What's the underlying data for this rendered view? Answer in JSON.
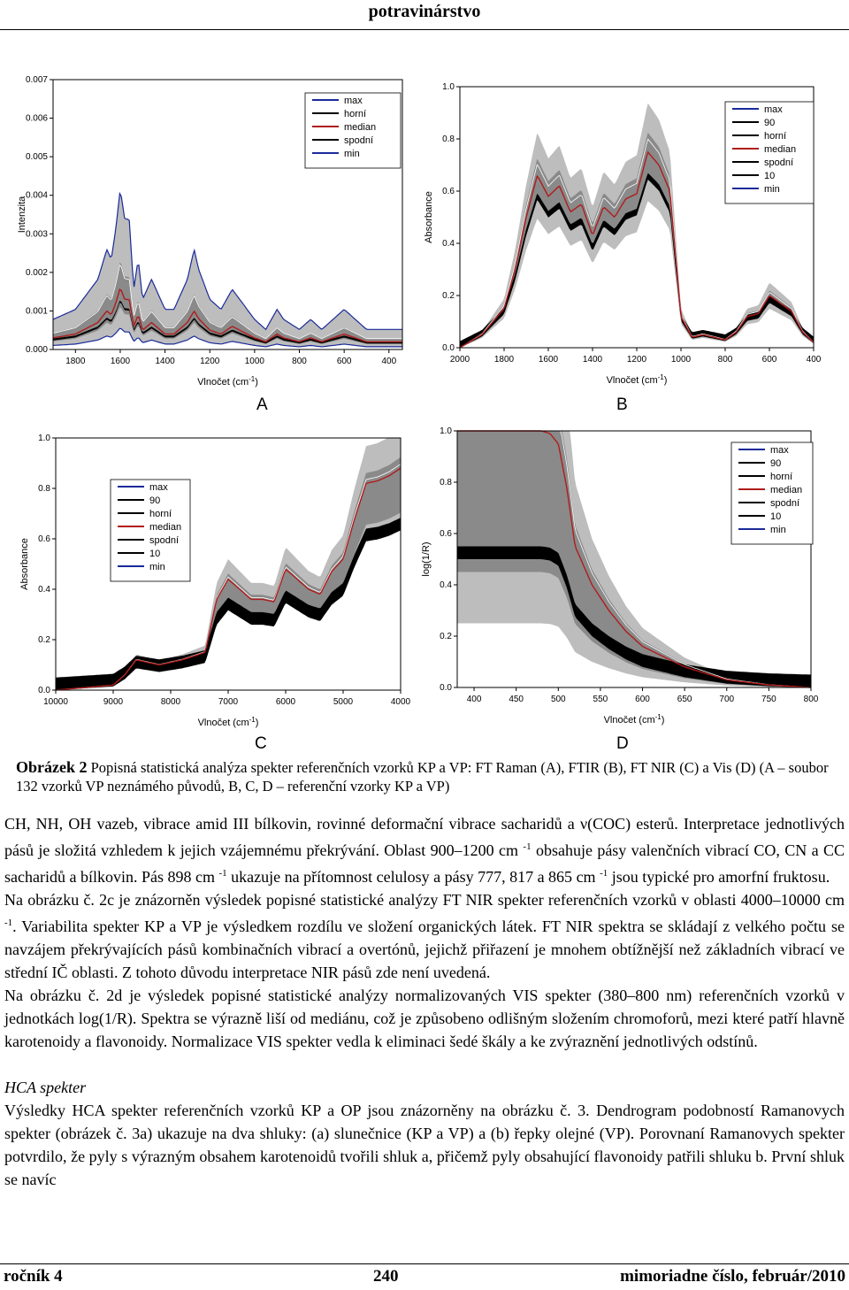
{
  "header": {
    "journal": "potravinárstvo"
  },
  "figure": {
    "panels": [
      {
        "letter": "A"
      },
      {
        "letter": "B"
      },
      {
        "letter": "C"
      },
      {
        "letter": "D"
      }
    ],
    "caption": {
      "label": "Obrázek 2",
      "text": "Popisná statistická analýza spekter referenčních vzorků KP a VP: FT Raman (A), FTIR (B), FT NIR (C) a Vis (D) (A – soubor 132 vzorků VP neznámého původů, B, C, D – referenční vzorky KP a VP)"
    }
  },
  "chart_data": [
    {
      "panel": "A",
      "type": "line",
      "ylabel": "Intenzita",
      "xlabel": "Vlnočet (cm-1)",
      "xticks": [
        "1800",
        "1600",
        "1400",
        "1200",
        "1000",
        "800",
        "600",
        "400"
      ],
      "yticks": [
        "0.000",
        "0.001",
        "0.002",
        "0.003",
        "0.004",
        "0.005",
        "0.006",
        "0.007"
      ],
      "xlim": [
        1900,
        340
      ],
      "ylim": [
        0,
        0.007
      ],
      "legend": [
        "max",
        "horní",
        "median",
        "spodní",
        "min"
      ],
      "legend_colors": [
        "#1a2a9a",
        "#000000",
        "#b01c1c",
        "#000000",
        "#1a2a9a"
      ],
      "series": [
        {
          "name": "median",
          "x": [
            1900,
            1800,
            1700,
            1660,
            1640,
            1620,
            1600,
            1580,
            1560,
            1540,
            1520,
            1500,
            1460,
            1440,
            1400,
            1360,
            1300,
            1270,
            1250,
            1200,
            1150,
            1100,
            1000,
            950,
            900,
            870,
            800,
            750,
            700,
            650,
            600,
            500,
            400,
            340
          ],
          "y": [
            0.0003,
            0.0004,
            0.0007,
            0.001,
            0.0009,
            0.0012,
            0.0016,
            0.0013,
            0.0013,
            0.0006,
            0.0009,
            0.0005,
            0.0007,
            0.0006,
            0.0004,
            0.0004,
            0.0007,
            0.001,
            0.0008,
            0.0005,
            0.0004,
            0.0006,
            0.0003,
            0.0002,
            0.0004,
            0.0003,
            0.0002,
            0.0003,
            0.0002,
            0.0003,
            0.0004,
            0.0002,
            0.0002,
            0.0002
          ]
        }
      ]
    },
    {
      "panel": "B",
      "type": "line",
      "ylabel": "Absorbance",
      "xlabel": "Vlnočet (cm-1)",
      "xticks": [
        "2000",
        "1800",
        "1600",
        "1400",
        "1200",
        "1000",
        "800",
        "600",
        "400"
      ],
      "yticks": [
        "0.0",
        "0.2",
        "0.4",
        "0.6",
        "0.8",
        "1.0"
      ],
      "xlim": [
        2000,
        400
      ],
      "ylim": [
        0,
        1.0
      ],
      "legend": [
        "max",
        "90",
        "horní",
        "median",
        "spodní",
        "10",
        "min"
      ],
      "series": [
        {
          "name": "median",
          "x": [
            2000,
            1900,
            1800,
            1750,
            1700,
            1650,
            1600,
            1550,
            1500,
            1450,
            1400,
            1350,
            1300,
            1250,
            1200,
            1150,
            1100,
            1050,
            1000,
            950,
            900,
            850,
            800,
            750,
            700,
            650,
            600,
            550,
            500,
            450,
            400
          ],
          "y": [
            0.0,
            0.05,
            0.15,
            0.3,
            0.5,
            0.66,
            0.58,
            0.62,
            0.52,
            0.55,
            0.43,
            0.54,
            0.5,
            0.57,
            0.59,
            0.75,
            0.7,
            0.6,
            0.12,
            0.04,
            0.05,
            0.04,
            0.03,
            0.06,
            0.12,
            0.13,
            0.2,
            0.17,
            0.14,
            0.06,
            0.02
          ]
        }
      ]
    },
    {
      "panel": "C",
      "type": "line",
      "ylabel": "Absorbance",
      "xlabel": "Vlnočet (cm-1)",
      "xticks": [
        "10000",
        "9000",
        "8000",
        "7000",
        "6000",
        "5000",
        "4000"
      ],
      "yticks": [
        "0.0",
        "0.2",
        "0.4",
        "0.6",
        "0.8",
        "1.0"
      ],
      "xlim": [
        10000,
        4000
      ],
      "ylim": [
        0,
        1.0
      ],
      "legend": [
        "max",
        "90",
        "horní",
        "median",
        "spodní",
        "10",
        "min"
      ],
      "series": [
        {
          "name": "median",
          "x": [
            10000,
            9500,
            9000,
            8800,
            8600,
            8400,
            8200,
            8000,
            7800,
            7400,
            7200,
            7000,
            6800,
            6600,
            6400,
            6200,
            6000,
            5800,
            5600,
            5400,
            5200,
            5000,
            4800,
            4600,
            4400,
            4200,
            4000
          ],
          "y": [
            0.0,
            0.01,
            0.02,
            0.06,
            0.12,
            0.11,
            0.1,
            0.11,
            0.12,
            0.15,
            0.36,
            0.44,
            0.4,
            0.36,
            0.36,
            0.35,
            0.48,
            0.44,
            0.4,
            0.38,
            0.47,
            0.52,
            0.68,
            0.82,
            0.83,
            0.85,
            0.88
          ]
        }
      ]
    },
    {
      "panel": "D",
      "type": "line",
      "ylabel": "log(1/R)",
      "xlabel": "Vlnočet (cm-1)",
      "xticks": [
        "400",
        "450",
        "500",
        "550",
        "600",
        "650",
        "700",
        "750",
        "800"
      ],
      "yticks": [
        "0.0",
        "0.2",
        "0.4",
        "0.6",
        "0.8",
        "1.0"
      ],
      "xlim": [
        380,
        800
      ],
      "ylim": [
        0,
        1.0
      ],
      "legend": [
        "max",
        "90",
        "horní",
        "median",
        "spodní",
        "10",
        "min"
      ],
      "series": [
        {
          "name": "median",
          "x": [
            380,
            400,
            450,
            480,
            490,
            500,
            510,
            520,
            540,
            560,
            580,
            600,
            650,
            700,
            750,
            800
          ],
          "y": [
            1.0,
            1.0,
            1.0,
            1.0,
            0.99,
            0.95,
            0.78,
            0.55,
            0.4,
            0.3,
            0.22,
            0.16,
            0.08,
            0.03,
            0.01,
            0.0
          ]
        }
      ]
    }
  ],
  "body": {
    "p1": "CH, NH, OH vazeb, vibrace amid III bílkovin, rovinné deformační vibrace sacharidů a ν(COC) esterů. Interpretace jednotlivých pásů je složitá vzhledem k jejich vzájemnému překrývání. Oblast 900–1200 cm-1 obsahuje pásy valenčních vibrací CO, CN a CC sacharidů a bílkovin. Pás 898 cm-1 ukazuje na přítomnost celulosy a pásy 777, 817 a 865 cm-1 jsou typické pro amorfní fruktosu.",
    "p2": "Na obrázku č. 2c je znázorněn výsledek popisné statistické analýzy FT NIR spekter referenčních vzorků v oblasti 4000–10000 cm-1. Variabilita spekter KP a VP je výsledkem rozdílu ve složení organických látek. FT NIR spektra se skládají z velkého počtu se navzájem překrývajících pásů kombinačních vibrací a overtónů, jejichž přiřazení je mnohem obtížnější než základních vibrací ve střední IČ oblasti. Z tohoto důvodu interpretace NIR pásů zde není uvedená.",
    "p3": "Na obrázku č. 2d je výsledek popisné statistické analýzy normalizovaných VIS spekter (380–800 nm) referenčních vzorků v jednotkách log(1/R). Spektra se výrazně liší od mediánu, což je způsobeno odlišným složením chromoforů, mezi které patří hlavně karotenoidy a flavonoidy. Normalizace VIS spekter vedla k eliminaci šedé škály a ke zvýraznění jednotlivých odstínů.",
    "section": "HCA spekter",
    "p4": "Výsledky HCA spekter referenčních vzorků KP a OP jsou znázorněny na obrázku č. 3. Dendrogram podobností Ramanovych spekter (obrázek č. 3a) ukazuje na dva shluky: (a) slunečnice (KP a VP) a (b) řepky olejné (VP). Porovnaní Ramanovych spekter potvrdilo, že pyly s výrazným obsahem karotenoidů tvořili shluk a, přičemž pyly obsahující flavonoidy patřili shluku b. První shluk se navíc"
  },
  "footer": {
    "left": "ročník 4",
    "center": "240",
    "right": "mimoriadne číslo, február/2010"
  }
}
